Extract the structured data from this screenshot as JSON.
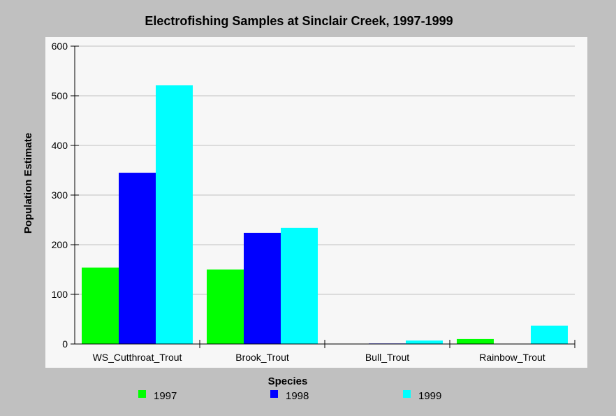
{
  "chart_data": {
    "type": "bar",
    "title": "Electrofishing Samples at Sinclair Creek, 1997-1999",
    "xlabel": "Species",
    "ylabel": "Population Estimate",
    "categories": [
      "WS_Cutthroat_Trout",
      "Brook_Trout",
      "Bull_Trout",
      "Rainbow_Trout"
    ],
    "series": [
      {
        "name": "1997",
        "values": [
          154,
          150,
          0,
          10
        ],
        "color": "#00ff00"
      },
      {
        "name": "1998",
        "values": [
          345,
          224,
          1,
          0
        ],
        "color": "#0000ff"
      },
      {
        "name": "1999",
        "values": [
          521,
          234,
          7,
          37
        ],
        "color": "#00ffff"
      }
    ],
    "ylim": [
      0,
      600
    ],
    "yticks": [
      "0",
      "100",
      "200",
      "300",
      "400",
      "500",
      "600"
    ],
    "grid": true,
    "legend_position": "bottom",
    "colors": {
      "page_background": "#c0c0c0",
      "plot_background": "#f7f7f7",
      "grid": "#c0c0c0"
    }
  }
}
